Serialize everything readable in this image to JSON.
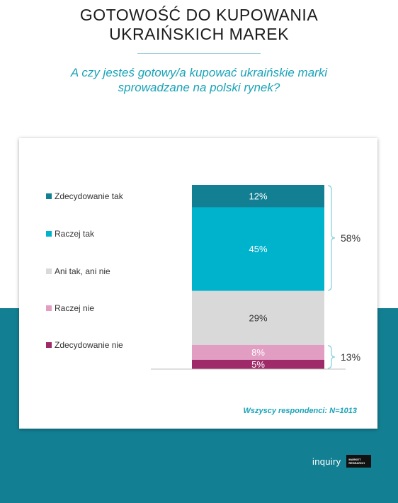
{
  "title_lines": [
    "GOTOWOŚĆ DO KUPOWANIA",
    "UKRAIŃSKICH MAREK"
  ],
  "question_lines": [
    "A czy jesteś gotowy/a kupować ukraińskie marki",
    "sprowadzane na polski rynek?"
  ],
  "footnote": "Wszyscy respondenci: N=1013",
  "brand": {
    "name": "inquiry",
    "box_lines": [
      "MARKET",
      "RESEARCH"
    ]
  },
  "chart_data": {
    "type": "bar",
    "stacked": true,
    "unit": "%",
    "series": [
      {
        "name": "Zdecydowanie tak",
        "value": 12,
        "label": "12%",
        "color": "#137f92"
      },
      {
        "name": "Raczej tak",
        "value": 45,
        "label": "45%",
        "color": "#00b3cc"
      },
      {
        "name": "Ani tak, ani nie",
        "value": 29,
        "label": "29%",
        "color": "#d9d9d9"
      },
      {
        "name": "Raczej nie",
        "value": 8,
        "label": "8%",
        "color": "#e29dc3"
      },
      {
        "name": "Zdecydowanie nie",
        "value": 5,
        "label": "5%",
        "color": "#9e2a6a"
      }
    ],
    "groups": [
      {
        "label": "58%",
        "from": 0,
        "to": 1
      },
      {
        "label": "13%",
        "from": 3,
        "to": 4
      }
    ],
    "legend_position": "left"
  }
}
